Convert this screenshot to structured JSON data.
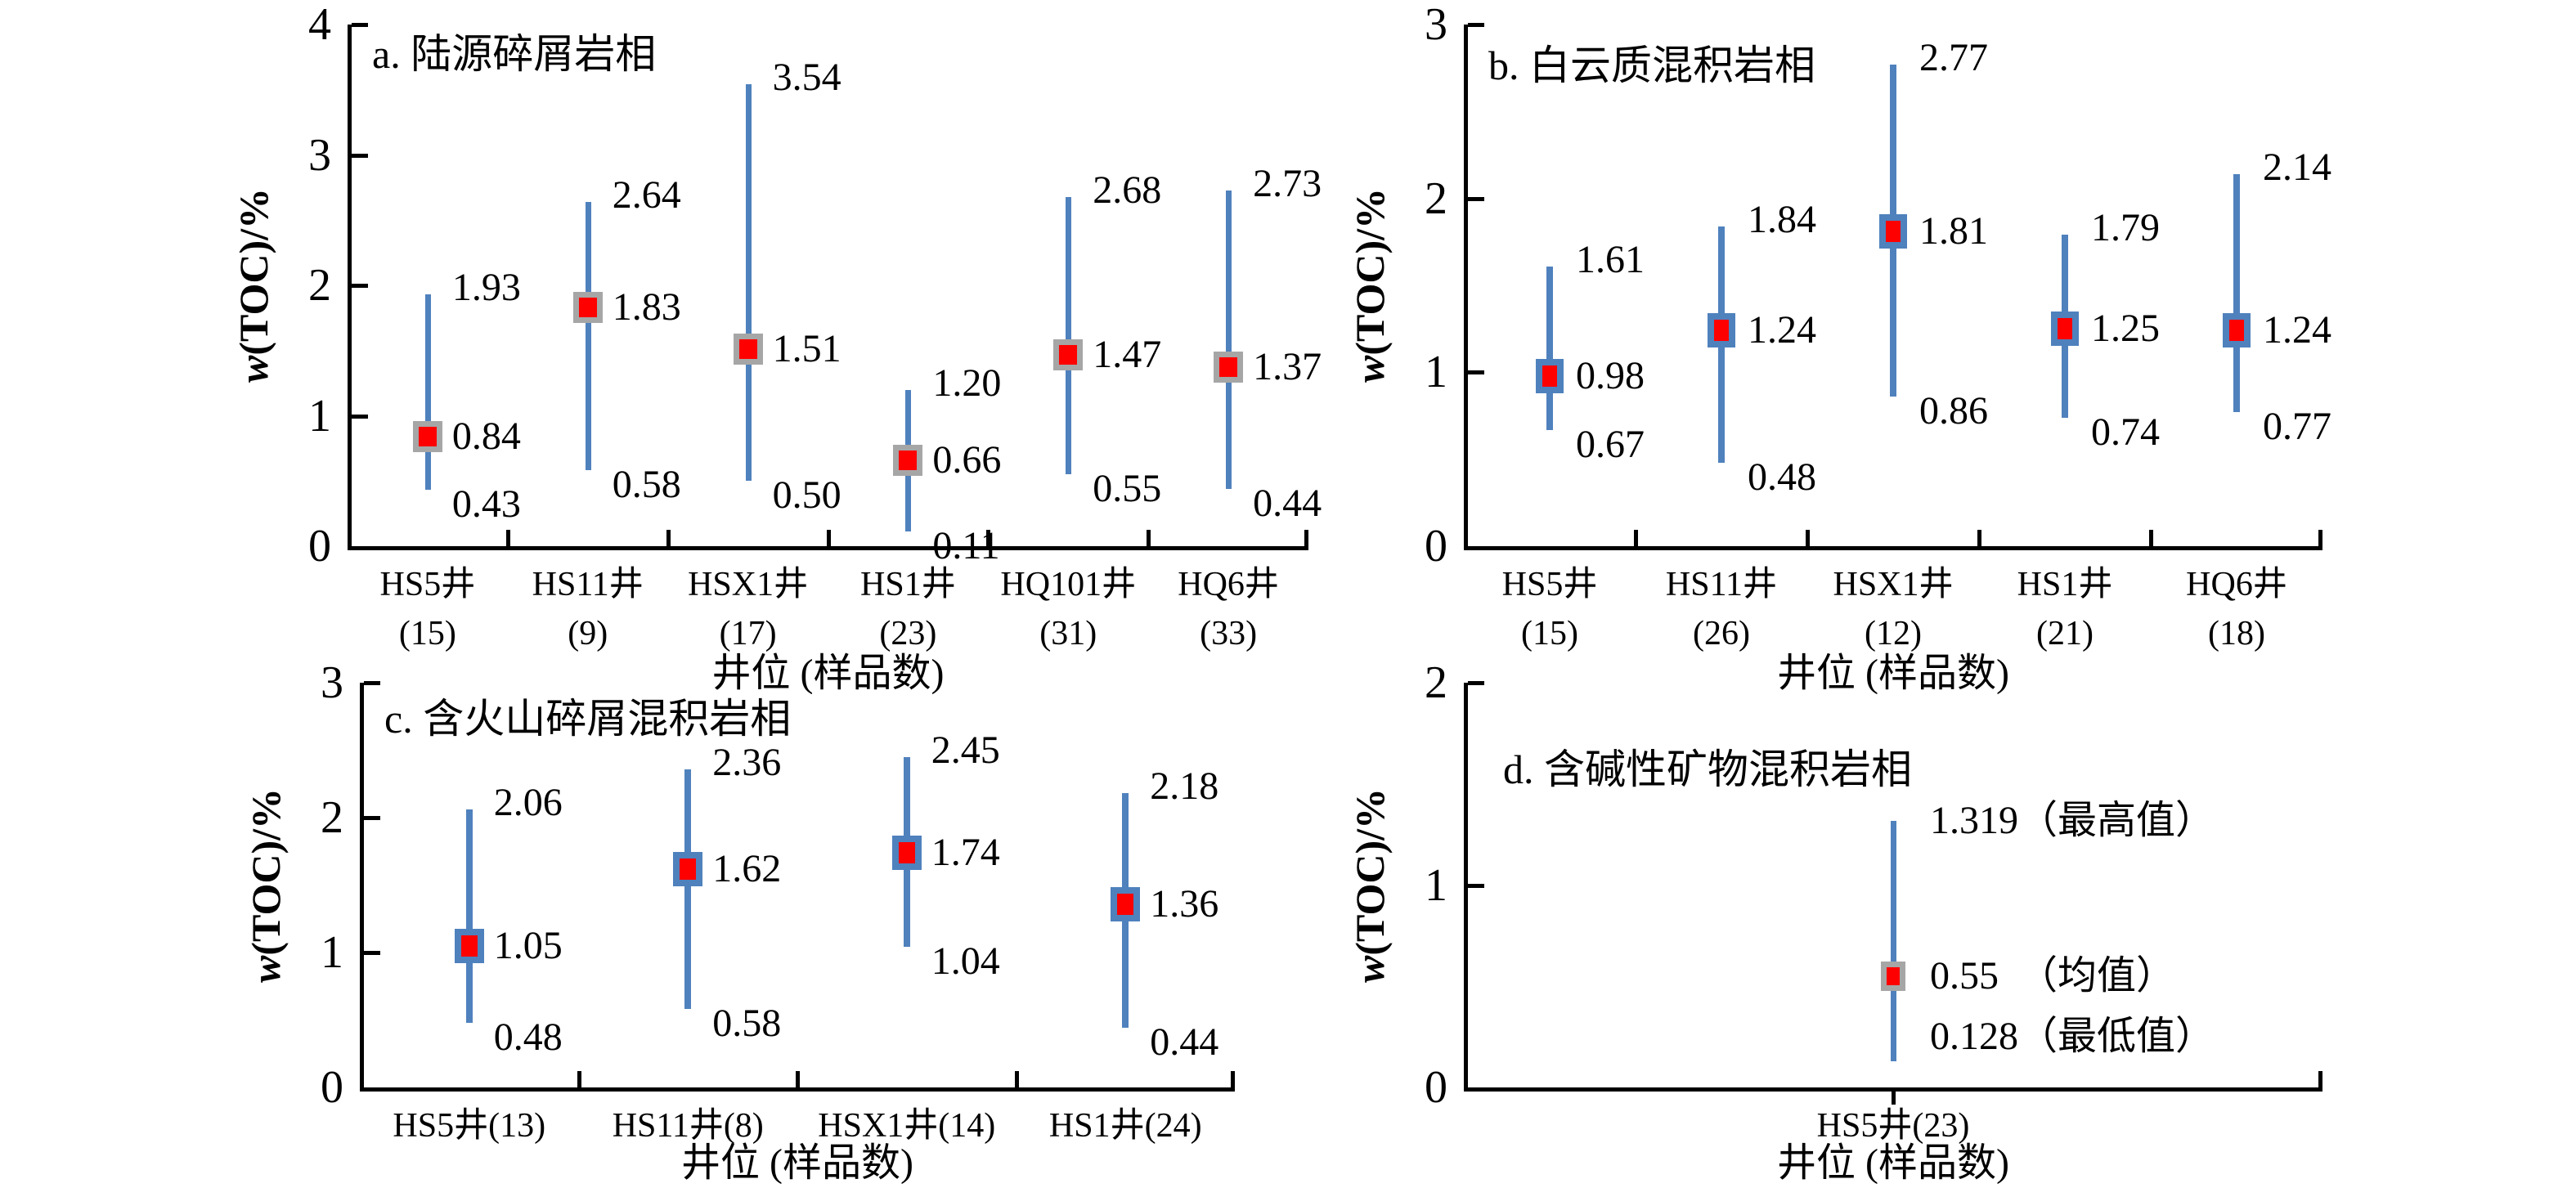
{
  "styles": {
    "background": "#ffffff",
    "bar_color": "#4f81bd",
    "marker_fill": "#ff0000",
    "marker_border_gray": "#a6a6a6",
    "marker_border_blue": "#4f81bd",
    "axis_color": "#000000",
    "text_color": "#000000"
  },
  "chart_data": [
    {
      "type": "scatter",
      "panel_id": "a",
      "title": "a. 陆源碎屑岩相",
      "ylabel": "w(TOC)/%",
      "ylabel_w": "w",
      "ylabel_rest": "(TOC)/%",
      "xlabel": "井位 (样品数)",
      "ylim": [
        0,
        4
      ],
      "yticks": [
        "0",
        "1",
        "2",
        "3",
        "4"
      ],
      "grid": false,
      "legend": false,
      "marker_border": "gray",
      "wells": [
        {
          "name": "HS5井",
          "count": "(15)",
          "sample_count": 15,
          "max": 1.93,
          "mean": 0.84,
          "min": 0.43,
          "labels": {
            "max": "1.93",
            "mean": "0.84",
            "min": "0.43"
          }
        },
        {
          "name": "HS11井",
          "count": "(9)",
          "sample_count": 9,
          "max": 2.64,
          "mean": 1.83,
          "min": 0.58,
          "labels": {
            "max": "2.64",
            "mean": "1.83",
            "min": "0.58"
          }
        },
        {
          "name": "HSX1井",
          "count": "(17)",
          "sample_count": 17,
          "max": 3.54,
          "mean": 1.51,
          "min": 0.5,
          "labels": {
            "max": "3.54",
            "mean": "1.51",
            "min": "0.50"
          }
        },
        {
          "name": "HS1井",
          "count": "(23)",
          "sample_count": 23,
          "max": 1.2,
          "mean": 0.66,
          "min": 0.11,
          "labels": {
            "max": "1.20",
            "mean": "0.66",
            "min": "0.11"
          }
        },
        {
          "name": "HQ101井",
          "count": "(31)",
          "sample_count": 31,
          "max": 2.68,
          "mean": 1.47,
          "min": 0.55,
          "labels": {
            "max": "2.68",
            "mean": "1.47",
            "min": "0.55"
          }
        },
        {
          "name": "HQ6井",
          "count": "(33)",
          "sample_count": 33,
          "max": 2.73,
          "mean": 1.37,
          "min": 0.44,
          "labels": {
            "max": "2.73",
            "mean": "1.37",
            "min": "0.44"
          }
        }
      ]
    },
    {
      "type": "scatter",
      "panel_id": "b",
      "title": "b. 白云质混积岩相",
      "ylabel": "w(TOC)/%",
      "ylabel_w": "w",
      "ylabel_rest": "(TOC)/%",
      "xlabel": "井位 (样品数)",
      "ylim": [
        0,
        3
      ],
      "yticks": [
        "0",
        "1",
        "2",
        "3"
      ],
      "grid": false,
      "legend": false,
      "marker_border": "blue",
      "wells": [
        {
          "name": "HS5井",
          "count": "(15)",
          "sample_count": 15,
          "max": 1.61,
          "mean": 0.98,
          "min": 0.67,
          "labels": {
            "max": "1.61",
            "mean": "0.98",
            "min": "0.67"
          }
        },
        {
          "name": "HS11井",
          "count": "(26)",
          "sample_count": 26,
          "max": 1.84,
          "mean": 1.24,
          "min": 0.48,
          "labels": {
            "max": "1.84",
            "mean": "1.24",
            "min": "0.48"
          }
        },
        {
          "name": "HSX1井",
          "count": "(12)",
          "sample_count": 12,
          "max": 2.77,
          "mean": 1.81,
          "min": 0.86,
          "labels": {
            "max": "2.77",
            "mean": "1.81",
            "min": "0.86"
          }
        },
        {
          "name": "HS1井",
          "count": "(21)",
          "sample_count": 21,
          "max": 1.79,
          "mean": 1.25,
          "min": 0.74,
          "labels": {
            "max": "1.79",
            "mean": "1.25",
            "min": "0.74"
          }
        },
        {
          "name": "HQ6井",
          "count": "(18)",
          "sample_count": 18,
          "max": 2.14,
          "mean": 1.24,
          "min": 0.77,
          "labels": {
            "max": "2.14",
            "mean": "1.24",
            "min": "0.77"
          }
        }
      ]
    },
    {
      "type": "scatter",
      "panel_id": "c",
      "title": "c. 含火山碎屑混积岩相",
      "ylabel": "w(TOC)/%",
      "ylabel_w": "w",
      "ylabel_rest": "(TOC)/%",
      "xlabel": "井位 (样品数)",
      "ylim": [
        0,
        3
      ],
      "yticks": [
        "0",
        "1",
        "2",
        "3"
      ],
      "grid": false,
      "legend": false,
      "marker_border": "blue",
      "wells": [
        {
          "name": "HS5井(13)",
          "sample_count": 13,
          "max": 2.06,
          "mean": 1.05,
          "min": 0.48,
          "labels": {
            "max": "2.06",
            "mean": "1.05",
            "min": "0.48"
          }
        },
        {
          "name": "HS11井(8)",
          "sample_count": 8,
          "max": 2.36,
          "mean": 1.62,
          "min": 0.58,
          "labels": {
            "max": "2.36",
            "mean": "1.62",
            "min": "0.58"
          }
        },
        {
          "name": "HSX1井(14)",
          "sample_count": 14,
          "max": 2.45,
          "mean": 1.74,
          "min": 1.04,
          "labels": {
            "max": "2.45",
            "mean": "1.74",
            "min": "1.04"
          }
        },
        {
          "name": "HS1井(24)",
          "sample_count": 24,
          "max": 2.18,
          "mean": 1.36,
          "min": 0.44,
          "labels": {
            "max": "2.18",
            "mean": "1.36",
            "min": "0.44"
          }
        }
      ]
    },
    {
      "type": "scatter",
      "panel_id": "d",
      "title": "d. 含碱性矿物混积岩相",
      "ylabel": "w(TOC)/%",
      "ylabel_w": "w",
      "ylabel_rest": "(TOC)/%",
      "xlabel": "井位 (样品数)",
      "ylim": [
        0,
        2
      ],
      "yticks": [
        "0",
        "1",
        "2"
      ],
      "grid": false,
      "legend": false,
      "marker_border": "gray",
      "wells": [
        {
          "name": "HS5井(23)",
          "sample_count": 23,
          "max": 1.319,
          "mean": 0.55,
          "min": 0.128,
          "labels": {
            "max": "1.319（最高值）",
            "mean": "0.55  （均值）",
            "min": "0.128（最低值）"
          }
        }
      ]
    }
  ]
}
